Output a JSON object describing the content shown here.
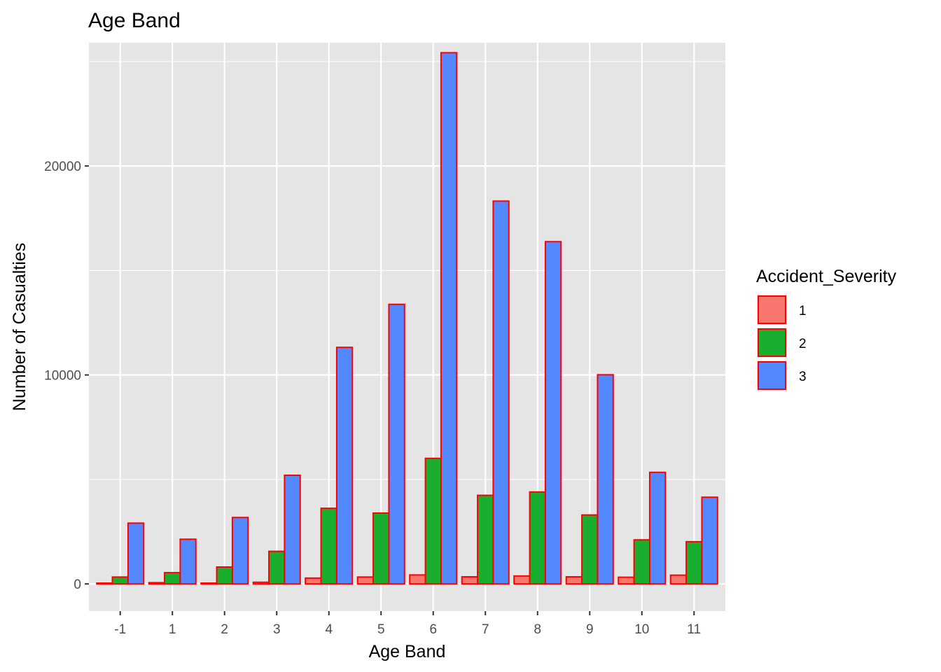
{
  "chart_data": {
    "type": "bar",
    "title": "Age Band",
    "xlabel": "Age Band",
    "ylabel": "Number of Casualties",
    "categories": [
      "-1",
      "1",
      "2",
      "3",
      "4",
      "5",
      "6",
      "7",
      "8",
      "9",
      "10",
      "11"
    ],
    "series": [
      {
        "name": "1",
        "color": "#F8766D",
        "values": [
          40,
          60,
          40,
          80,
          280,
          330,
          430,
          340,
          380,
          340,
          320,
          420
        ]
      },
      {
        "name": "2",
        "color": "#1AAE2E",
        "values": [
          330,
          540,
          810,
          1560,
          3620,
          3390,
          6010,
          4240,
          4400,
          3300,
          2110,
          2020
        ]
      },
      {
        "name": "3",
        "color": "#5388FF",
        "values": [
          2910,
          2140,
          3180,
          5200,
          11320,
          13380,
          25420,
          18320,
          16380,
          10010,
          5340,
          4150
        ]
      }
    ],
    "bar_outline_color": "#FF0000",
    "ylim": [
      -1300,
      25900
    ],
    "yticks": [
      0,
      10000,
      20000
    ],
    "ytick_labels": [
      "0",
      "10000",
      "20000"
    ],
    "grid": true,
    "panel_background": "#E5E5E5",
    "legend": {
      "title": "Accident_Severity",
      "position": "right"
    }
  }
}
